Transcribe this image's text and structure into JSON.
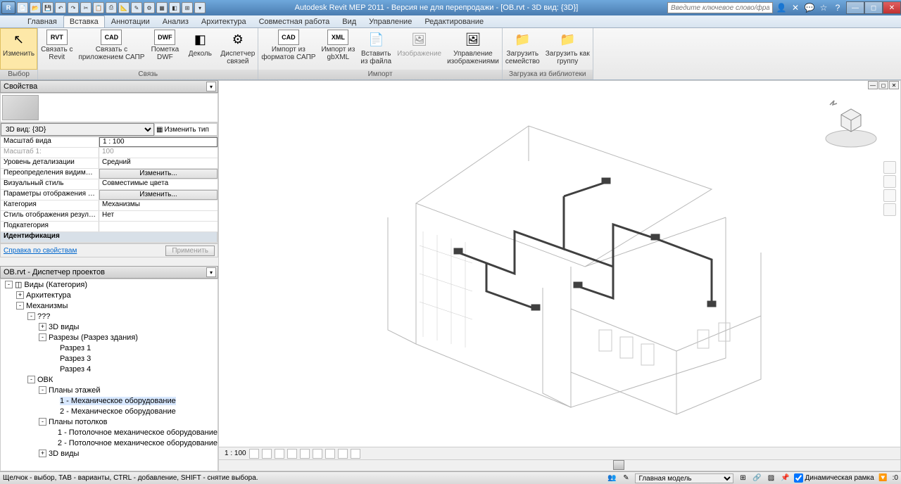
{
  "titlebar": {
    "app_label": "R",
    "qat_buttons": [
      "H",
      "1",
      "2",
      "3",
      "4",
      "5",
      "6",
      "7",
      "8",
      "9",
      "01",
      "02",
      "03",
      "04",
      "05",
      "06",
      "07",
      "08"
    ],
    "title": "Autodesk Revit MEP 2011 - Версия не для перепродажи - [OB.rvt - 3D вид: {3D}]",
    "search_placeholder": "Введите ключевое слово/фразу",
    "icons": [
      "sign-in",
      "subscription",
      "exchange",
      "favorites",
      "help"
    ]
  },
  "tabs": [
    "Главная",
    "Вставка",
    "Аннотации",
    "Анализ",
    "Архитектура",
    "Совместная работа",
    "Вид",
    "Управление",
    "Редактирование"
  ],
  "active_tab": 1,
  "ribbon": {
    "groups": [
      {
        "label": "Выбор",
        "buttons": [
          {
            "label": "Изменить",
            "icon": "↖",
            "active": true
          }
        ]
      },
      {
        "label": "Связь",
        "buttons": [
          {
            "label": "Связать с\nRevit",
            "icon": "RVT"
          },
          {
            "label": "Связать с\nприложением САПР",
            "icon": "CAD"
          },
          {
            "label": "Пометка\nDWF",
            "icon": "DWF"
          },
          {
            "label": "Деколь",
            "icon": "◧"
          },
          {
            "label": "Диспетчер\nсвязей",
            "icon": "⚙"
          }
        ]
      },
      {
        "label": "Импорт",
        "buttons": [
          {
            "label": "Импорт из\nформатов САПР",
            "icon": "CAD"
          },
          {
            "label": "Импорт из\ngbXML",
            "icon": "XML"
          },
          {
            "label": "Вставить\nиз файла",
            "icon": "📄"
          },
          {
            "label": "Изображение",
            "icon": "🖼",
            "disabled": true
          },
          {
            "label": "Управление\nизображениями",
            "icon": "🖼"
          }
        ]
      },
      {
        "label": "Загрузка из библиотеки",
        "buttons": [
          {
            "label": "Загрузить\nсемейство",
            "icon": "📁"
          },
          {
            "label": "Загрузить как\nгруппу",
            "icon": "📁"
          }
        ]
      }
    ]
  },
  "properties": {
    "title": "Свойства",
    "type_selector": "3D вид: {3D}",
    "edit_type": "Изменить тип",
    "rows": [
      {
        "label": "Масштаб вида",
        "value": "1 : 100",
        "boxed": true
      },
      {
        "label": "Масштаб 1:",
        "value": "100",
        "dim": true
      },
      {
        "label": "Уровень детализации",
        "value": "Средний"
      },
      {
        "label": "Переопределения видимост...",
        "value": "Изменить...",
        "btn": true
      },
      {
        "label": "Визуальный стиль",
        "value": "Совместимые цвета"
      },
      {
        "label": "Параметры отображения гр...",
        "value": "Изменить...",
        "btn": true
      },
      {
        "label": "Категория",
        "value": "Механизмы"
      },
      {
        "label": "Стиль отображения результ...",
        "value": "Нет"
      },
      {
        "label": "Подкатегория",
        "value": ""
      }
    ],
    "section": "Идентификация",
    "help_link": "Справка по свойствам",
    "apply": "Применить"
  },
  "project_browser": {
    "title": "OB.rvt - Диспетчер проектов",
    "tree": [
      {
        "indent": 0,
        "toggle": "-",
        "icon": "◫",
        "label": "Виды (Категория)"
      },
      {
        "indent": 1,
        "toggle": "+",
        "label": "Архитектура"
      },
      {
        "indent": 1,
        "toggle": "-",
        "label": "Механизмы"
      },
      {
        "indent": 2,
        "toggle": "-",
        "label": "???"
      },
      {
        "indent": 3,
        "toggle": "+",
        "label": "3D виды"
      },
      {
        "indent": 3,
        "toggle": "-",
        "label": "Разрезы (Разрез здания)"
      },
      {
        "indent": 4,
        "toggle": "",
        "label": "Разрез 1"
      },
      {
        "indent": 4,
        "toggle": "",
        "label": "Разрез 3"
      },
      {
        "indent": 4,
        "toggle": "",
        "label": "Разрез 4"
      },
      {
        "indent": 2,
        "toggle": "-",
        "label": "ОВК"
      },
      {
        "indent": 3,
        "toggle": "-",
        "label": "Планы этажей"
      },
      {
        "indent": 4,
        "toggle": "",
        "label": "1 - Механическое оборудование",
        "selected": true
      },
      {
        "indent": 4,
        "toggle": "",
        "label": "2 - Механическое оборудование"
      },
      {
        "indent": 3,
        "toggle": "-",
        "label": "Планы потолков"
      },
      {
        "indent": 4,
        "toggle": "",
        "label": "1 - Потолочное механическое оборудование"
      },
      {
        "indent": 4,
        "toggle": "",
        "label": "2 - Потолочное механическое оборудование"
      },
      {
        "indent": 3,
        "toggle": "+",
        "label": "3D виды"
      }
    ]
  },
  "view_controls": {
    "scale": "1 : 100"
  },
  "statusbar": {
    "hint": "Щелчок - выбор, TAB - варианты, CTRL - добавление, SHIFT - снятие выбора.",
    "model_select": "Главная модель",
    "dynamic_frame": "Динамическая рамка"
  },
  "colors": {
    "building_line": "#b8b8b8",
    "duct_line": "#404040",
    "ribbon_hover": "#fde8a8"
  }
}
